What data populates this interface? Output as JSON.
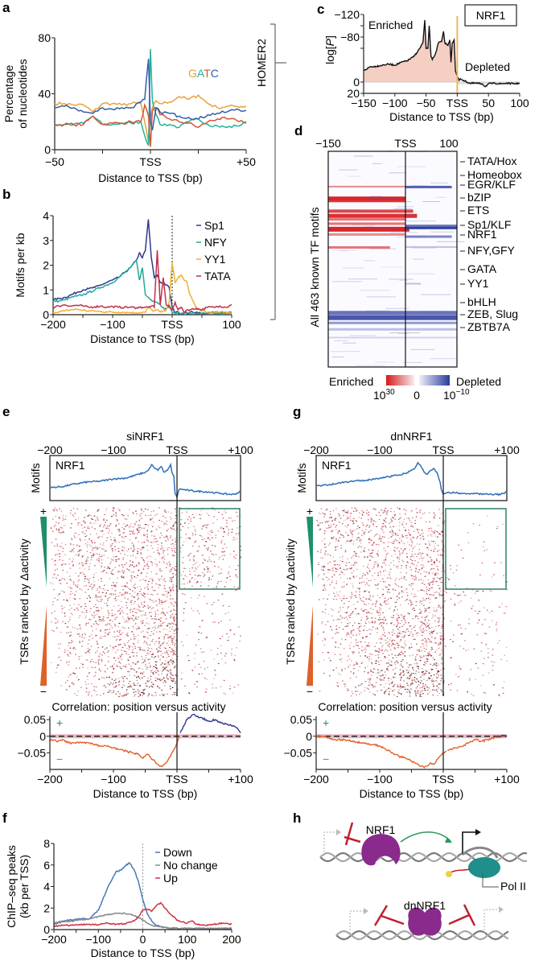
{
  "chart_data": [
    {
      "panel": "a",
      "type": "line",
      "xlabel": "Distance to TSS (bp)",
      "ylabel": "Percentage of nucleotides",
      "xlim": [
        -50,
        50
      ],
      "ylim": [
        0,
        80
      ],
      "xticks": [
        "-50",
        "TSS",
        "+50"
      ],
      "yticks": [
        "0",
        "40",
        "80"
      ],
      "legend_letters": [
        "G",
        "A",
        "T",
        "C"
      ],
      "legend_colors": [
        "#e8a13a",
        "#22b39a",
        "#d4553a",
        "#2f5fa8"
      ],
      "x": [
        -50,
        -45,
        -40,
        -35,
        -30,
        -25,
        -20,
        -15,
        -10,
        -5,
        -3,
        -1,
        0,
        1,
        3,
        5,
        10,
        15,
        20,
        25,
        30,
        35,
        40,
        45,
        50
      ],
      "series": [
        {
          "name": "G",
          "color": "#e8a13a",
          "values": [
            33,
            33,
            32,
            32,
            27,
            33,
            33,
            32,
            33,
            33,
            20,
            5,
            22,
            30,
            35,
            33,
            34,
            38,
            36,
            39,
            33,
            30,
            31,
            31,
            31
          ]
        },
        {
          "name": "A",
          "color": "#22b39a",
          "values": [
            18,
            18,
            18,
            19,
            24,
            18,
            18,
            19,
            19,
            20,
            10,
            3,
            72,
            35,
            25,
            18,
            18,
            16,
            20,
            22,
            18,
            17,
            16,
            17,
            19
          ]
        },
        {
          "name": "T",
          "color": "#d4553a",
          "values": [
            18,
            18,
            18,
            18,
            24,
            18,
            19,
            19,
            20,
            20,
            32,
            24,
            2,
            28,
            30,
            25,
            22,
            20,
            19,
            16,
            20,
            22,
            22,
            21,
            20
          ]
        },
        {
          "name": "C",
          "color": "#2f5fa8",
          "values": [
            30,
            31,
            30,
            27,
            26,
            30,
            29,
            30,
            30,
            34,
            36,
            65,
            20,
            14,
            30,
            27,
            26,
            24,
            23,
            22,
            25,
            26,
            27,
            29,
            28
          ]
        }
      ]
    },
    {
      "panel": "b",
      "type": "line",
      "xlabel": "Distance to TSS (bp)",
      "ylabel": "Motifs per kb",
      "xlim": [
        -200,
        100
      ],
      "ylim": [
        0,
        4
      ],
      "xticks": [
        "-200",
        "-100",
        "TSS",
        "100"
      ],
      "yticks": [
        "0",
        "1",
        "2",
        "3",
        "4"
      ],
      "x": [
        -200,
        -190,
        -180,
        -170,
        -160,
        -150,
        -140,
        -130,
        -120,
        -110,
        -100,
        -90,
        -80,
        -70,
        -60,
        -55,
        -50,
        -45,
        -40,
        -35,
        -30,
        -25,
        -20,
        -15,
        -10,
        -5,
        0,
        5,
        10,
        15,
        20,
        25,
        30,
        40,
        50,
        60,
        70,
        80,
        90,
        100
      ],
      "series": [
        {
          "name": "Sp1",
          "color": "#2e3a8c",
          "values": [
            0.6,
            0.65,
            0.7,
            0.8,
            0.9,
            1.0,
            1.05,
            1.1,
            1.2,
            1.3,
            1.4,
            1.5,
            1.7,
            1.9,
            2.2,
            2.5,
            2.3,
            2.6,
            3.85,
            2.3,
            1.5,
            1.6,
            1.3,
            1.3,
            1.2,
            1.1,
            0.3,
            0.1,
            0.1,
            0.05,
            0.1,
            0.05,
            0.1,
            0.1,
            0.05,
            0.05,
            0.1,
            0.1,
            0.1,
            0.1
          ]
        },
        {
          "name": "NFY",
          "color": "#22a89a",
          "values": [
            0.55,
            0.55,
            0.6,
            0.7,
            0.75,
            0.8,
            0.9,
            1.0,
            1.1,
            1.2,
            1.3,
            1.5,
            1.7,
            1.9,
            2.2,
            1.4,
            1.9,
            0.8,
            0.7,
            0.6,
            0.55,
            0.5,
            0.4,
            0.3,
            0.2,
            0.4,
            0.1,
            0.05,
            0.05,
            0.05,
            0.05,
            0.05,
            0.05,
            0.05,
            0.05,
            0.05,
            0.05,
            0.05,
            0.05,
            0.05
          ]
        },
        {
          "name": "YY1",
          "color": "#f0b030",
          "values": [
            0.1,
            0.12,
            0.15,
            0.2,
            0.22,
            0.18,
            0.15,
            0.15,
            0.12,
            0.12,
            0.1,
            0.1,
            0.1,
            0.08,
            0.08,
            0.08,
            0.1,
            0.1,
            0.3,
            0.2,
            0.15,
            0.2,
            0.1,
            0.15,
            0.2,
            0.5,
            2.1,
            1.3,
            1.5,
            1.6,
            1.4,
            1.3,
            0.8,
            0.3,
            0.15,
            0.1,
            0.1,
            0.1,
            0.1,
            0.1
          ]
        },
        {
          "name": "TATA",
          "color": "#c0304a",
          "values": [
            0.3,
            0.35,
            0.4,
            0.35,
            0.38,
            0.35,
            0.3,
            0.32,
            0.35,
            0.3,
            0.33,
            0.3,
            0.3,
            0.3,
            0.28,
            0.3,
            0.3,
            0.3,
            0.3,
            0.35,
            0.3,
            2.6,
            0.4,
            1.5,
            0.4,
            0.3,
            0.2,
            0.5,
            0.2,
            0.3,
            0.1,
            0.2,
            0.2,
            0.25,
            0.2,
            0.3,
            0.3,
            0.35,
            0.3,
            0.4
          ]
        }
      ]
    },
    {
      "panel": "c",
      "type": "area",
      "title_box": "NRF1",
      "xlabel": "Distance to TSS (bp)",
      "ylabel": "log[P]",
      "xlim": [
        -150,
        100
      ],
      "ylim": [
        20,
        -120
      ],
      "xticks": [
        "-150",
        "-100",
        "-50",
        "TSS",
        "50",
        "100"
      ],
      "yticks": [
        "-120",
        "-80",
        "0",
        "20"
      ],
      "annotations": [
        "Enriched",
        "Depleted"
      ],
      "x": [
        -150,
        -140,
        -130,
        -120,
        -110,
        -100,
        -90,
        -80,
        -70,
        -65,
        -60,
        -55,
        -52,
        -50,
        -47,
        -45,
        -42,
        -40,
        -35,
        -30,
        -25,
        -22,
        -20,
        -15,
        -12,
        -10,
        -8,
        -5,
        -3,
        0,
        3,
        5,
        10,
        20,
        30,
        40,
        45,
        50,
        60,
        70,
        80,
        90,
        100
      ],
      "values": [
        -20,
        -27,
        -28,
        -30,
        -32,
        -30,
        -35,
        -38,
        -45,
        -52,
        -60,
        -70,
        -110,
        -60,
        -60,
        -100,
        -45,
        -40,
        -50,
        -70,
        -72,
        -90,
        -70,
        -65,
        -75,
        -35,
        -70,
        -75,
        -20,
        -10,
        -3,
        -6,
        -3,
        2,
        2,
        3,
        8,
        3,
        2,
        3,
        2,
        3,
        2
      ],
      "tss_line_color": "#e8b860",
      "fill_color": "#f5cfc2"
    },
    {
      "panel": "d",
      "type": "heatmap",
      "xlim": [
        -150,
        100
      ],
      "xticks": [
        "-150",
        "TSS",
        "100"
      ],
      "ylabel": "All 463 known TF motifs",
      "row_labels": [
        "TATA/Hox",
        "Homeobox",
        "EGR/KLF",
        "bZIP",
        "ETS",
        "Sp1/KLF",
        "NRF1",
        "NFY,GFY",
        "GATA",
        "YY1",
        "bHLH",
        "ZEB, Slug",
        "ZBTB7A"
      ],
      "colorbar": {
        "low_label": "Enriched",
        "high_label": "Depleted",
        "ticks": [
          "10^30",
          "0",
          "10^-10"
        ],
        "enriched_color": "#d7191c",
        "depleted_color": "#2b3a9c"
      }
    },
    {
      "panel": "e",
      "title": "siNRF1",
      "type": "line",
      "top_xticks": [
        "-200",
        "-100",
        "TSS",
        "+100"
      ],
      "motif_label": "NRF1",
      "motif_ylabel": "Motifs",
      "heatmap_ylabel": "TSRs ranked by Δactivity",
      "corr_title": "Correlation: position versus activity",
      "corr_yticks": [
        "0.05",
        "0",
        "-0.05"
      ],
      "xlabel": "Distance to TSS (bp)",
      "xticks": [
        "-200",
        "-100",
        "TSS",
        "+100"
      ],
      "xlim": [
        -200,
        100
      ],
      "motif_curve": {
        "x": [
          -200,
          -180,
          -160,
          -140,
          -120,
          -100,
          -80,
          -60,
          -50,
          -45,
          -40,
          -35,
          -30,
          -25,
          -20,
          -15,
          -10,
          -8,
          -5,
          -3,
          0,
          3,
          5,
          10,
          20,
          30,
          40,
          50,
          60,
          70,
          80,
          90,
          100
        ],
        "values": [
          0.25,
          0.28,
          0.35,
          0.4,
          0.42,
          0.48,
          0.5,
          0.6,
          0.65,
          0.7,
          0.85,
          0.75,
          0.7,
          0.8,
          0.65,
          0.7,
          0.85,
          0.65,
          0.55,
          0.1,
          0.0,
          0.2,
          0.22,
          0.2,
          0.18,
          0.16,
          0.15,
          0.14,
          0.12,
          0.1,
          0.08,
          0.08,
          0.15
        ]
      },
      "correlation": {
        "x": [
          -200,
          -190,
          -180,
          -170,
          -160,
          -150,
          -140,
          -130,
          -120,
          -110,
          -100,
          -90,
          -80,
          -70,
          -60,
          -55,
          -50,
          -45,
          -40,
          -35,
          -30,
          -25,
          -20,
          -15,
          -10,
          -5,
          0,
          5,
          10,
          15,
          20,
          25,
          30,
          40,
          50,
          60,
          70,
          80,
          90,
          95,
          100
        ],
        "values": [
          -0.01,
          -0.015,
          -0.01,
          -0.02,
          -0.02,
          -0.02,
          -0.02,
          -0.025,
          -0.03,
          -0.03,
          -0.035,
          -0.04,
          -0.045,
          -0.05,
          -0.055,
          -0.065,
          -0.06,
          -0.055,
          -0.07,
          -0.075,
          -0.085,
          -0.09,
          -0.085,
          -0.075,
          -0.06,
          -0.04,
          -0.02,
          0.01,
          0.03,
          0.05,
          0.055,
          0.065,
          0.06,
          0.055,
          0.045,
          0.05,
          0.04,
          0.035,
          0.03,
          0.025,
          0.01
        ]
      }
    },
    {
      "panel": "g",
      "title": "dnNRF1",
      "type": "line",
      "top_xticks": [
        "-200",
        "-100",
        "TSS",
        "+100"
      ],
      "motif_label": "NRF1",
      "motif_ylabel": "Motifs",
      "heatmap_ylabel": "TSRs ranked by Δactivity",
      "corr_title": "Correlation: position versus activity",
      "corr_yticks": [
        "0.05",
        "0",
        "-0.05"
      ],
      "xlabel": "Distance to TSS (bp)",
      "xticks": [
        "-200",
        "-100",
        "TSS",
        "+100"
      ],
      "xlim": [
        -200,
        100
      ],
      "motif_curve": {
        "x": [
          -200,
          -180,
          -160,
          -140,
          -120,
          -100,
          -80,
          -60,
          -50,
          -45,
          -40,
          -35,
          -30,
          -25,
          -20,
          -15,
          -10,
          -8,
          -5,
          -3,
          0,
          3,
          5,
          10,
          20,
          30,
          40,
          50,
          60,
          70,
          80,
          90,
          100
        ],
        "values": [
          0.3,
          0.32,
          0.38,
          0.42,
          0.45,
          0.5,
          0.55,
          0.62,
          0.7,
          0.75,
          0.9,
          0.8,
          0.65,
          0.6,
          0.7,
          0.75,
          0.65,
          0.55,
          0.4,
          0.2,
          0.08,
          0.1,
          0.12,
          0.12,
          0.12,
          0.11,
          0.1,
          0.1,
          0.09,
          0.08,
          0.08,
          0.07,
          0.15
        ]
      },
      "correlation": {
        "x": [
          -200,
          -190,
          -180,
          -170,
          -160,
          -150,
          -140,
          -130,
          -120,
          -110,
          -100,
          -90,
          -80,
          -70,
          -60,
          -55,
          -50,
          -45,
          -40,
          -35,
          -30,
          -25,
          -20,
          -15,
          -10,
          -5,
          0,
          5,
          10,
          20,
          30,
          40,
          50,
          60,
          70,
          80,
          90,
          100
        ],
        "values": [
          0.0,
          0.0,
          -0.005,
          -0.01,
          -0.01,
          -0.012,
          -0.015,
          -0.02,
          -0.022,
          -0.025,
          -0.03,
          -0.04,
          -0.05,
          -0.06,
          -0.065,
          -0.07,
          -0.075,
          -0.08,
          -0.085,
          -0.09,
          -0.095,
          -0.09,
          -0.08,
          -0.085,
          -0.07,
          -0.06,
          -0.05,
          -0.045,
          -0.04,
          -0.035,
          -0.03,
          -0.02,
          -0.01,
          -0.015,
          -0.01,
          -0.005,
          0.0,
          0.0
        ]
      }
    },
    {
      "panel": "f",
      "type": "line",
      "xlabel": "Distance to TSS (bp)",
      "ylabel": "ChIP–seq peaks (kb per TSS)",
      "xlim": [
        -200,
        200
      ],
      "ylim": [
        0,
        8
      ],
      "xticks": [
        "-200",
        "-100",
        "0",
        "100",
        "200"
      ],
      "yticks": [
        "0",
        "2",
        "4",
        "6",
        "8"
      ],
      "x": [
        -200,
        -180,
        -160,
        -140,
        -120,
        -110,
        -100,
        -90,
        -80,
        -70,
        -60,
        -50,
        -40,
        -30,
        -20,
        -10,
        0,
        10,
        20,
        30,
        40,
        50,
        60,
        80,
        100,
        110,
        120,
        140,
        160,
        180,
        200
      ],
      "series": [
        {
          "name": "Down",
          "color": "#4a78b8",
          "values": [
            0.5,
            0.8,
            0.9,
            1.0,
            1.0,
            1.4,
            1.8,
            2.8,
            3.8,
            4.6,
            5.4,
            5.5,
            5.9,
            6.2,
            5.6,
            4.5,
            2.8,
            1.5,
            0.8,
            0.4,
            0.25,
            0.2,
            0.15,
            0.1,
            0.1,
            0.1,
            0.1,
            0.1,
            0.1,
            0.1,
            0.1
          ]
        },
        {
          "name": "No change",
          "color": "#8a8a8a",
          "values": [
            0.6,
            0.7,
            0.8,
            0.9,
            1.0,
            1.1,
            1.2,
            1.3,
            1.4,
            1.45,
            1.5,
            1.5,
            1.5,
            1.45,
            1.3,
            1.1,
            0.9,
            0.6,
            0.4,
            0.3,
            0.25,
            0.2,
            0.15,
            0.12,
            0.1,
            0.1,
            0.1,
            0.1,
            0.1,
            0.1,
            0.1
          ]
        },
        {
          "name": "Up",
          "color": "#d03040",
          "values": [
            0.3,
            0.4,
            0.4,
            0.45,
            0.5,
            0.45,
            0.45,
            0.55,
            0.6,
            0.5,
            0.5,
            0.55,
            0.5,
            0.7,
            0.8,
            1.2,
            1.8,
            1.9,
            1.7,
            2.2,
            2.5,
            2.0,
            1.5,
            0.8,
            0.6,
            0.8,
            0.5,
            0.4,
            0.5,
            0.6,
            0.5
          ]
        }
      ]
    }
  ],
  "panel_labels": {
    "a": "a",
    "b": "b",
    "c": "c",
    "d": "d",
    "e": "e",
    "f": "f",
    "g": "g",
    "h": "h"
  },
  "bracket_label": "HOMER2",
  "diagram_h": {
    "top_protein": "NRF1",
    "bottom_protein": "dnNRF1",
    "polymerase": "Pol II",
    "colors": {
      "nrf1": "#8a2a8c",
      "polII": "#1e8f8a",
      "inhibit": "#c02030",
      "activate": "#2a9a5a"
    }
  }
}
